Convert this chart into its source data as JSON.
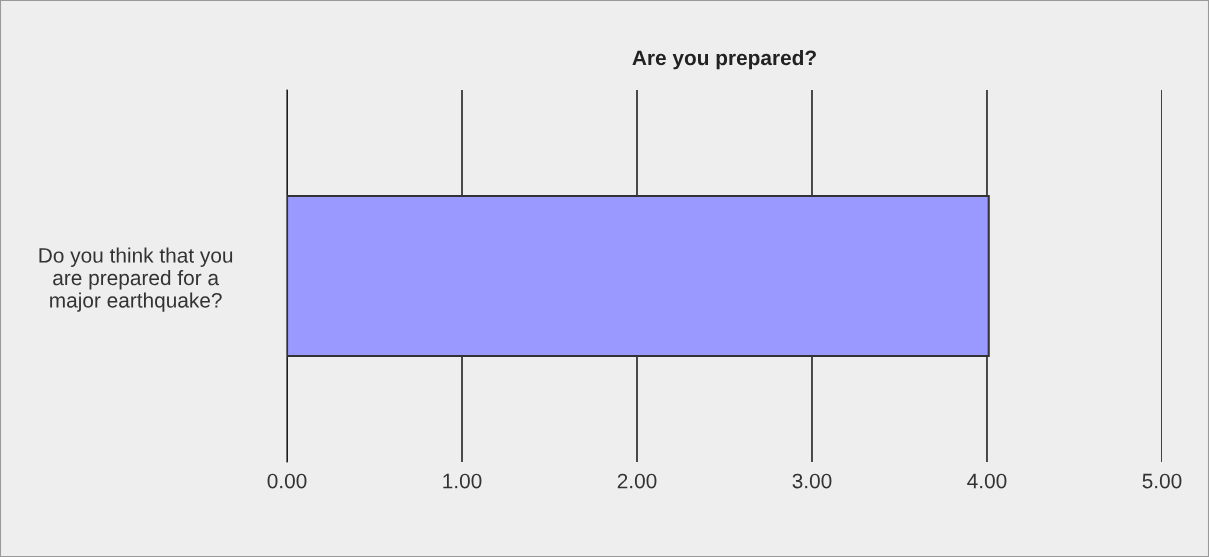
{
  "chart_data": {
    "type": "bar",
    "orientation": "horizontal",
    "title": "Are you prepared?",
    "categories": [
      "Do you think that you\nare prepared for a\nmajor earthquake?"
    ],
    "values": [
      4.01
    ],
    "color": "#9999ff",
    "xlim": [
      0,
      5
    ],
    "xticks": [
      {
        "value": 0,
        "label": "0.00"
      },
      {
        "value": 1,
        "label": "1.00"
      },
      {
        "value": 2,
        "label": "2.00"
      },
      {
        "value": 3,
        "label": "3.00"
      },
      {
        "value": 4,
        "label": "4.00"
      },
      {
        "value": 5,
        "label": "5.00"
      }
    ],
    "grid": "x"
  }
}
